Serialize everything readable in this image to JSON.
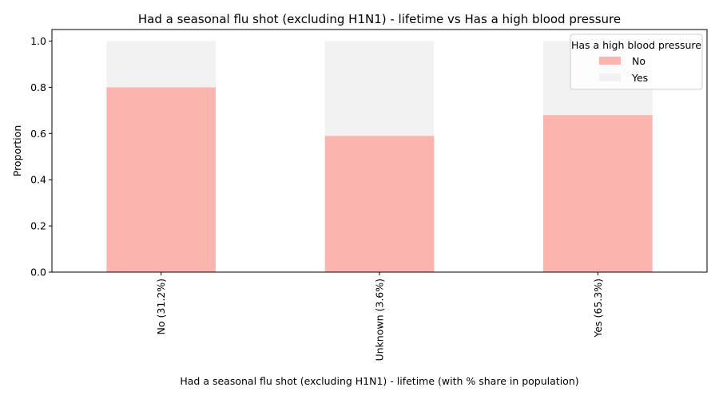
{
  "chart_data": {
    "type": "bar",
    "stacked": true,
    "title": "Had a seasonal flu shot (excluding H1N1) - lifetime vs Has a high blood pressure",
    "xlabel": "Had a seasonal flu shot (excluding H1N1) - lifetime (with % share in population)",
    "ylabel": "Proportion",
    "categories": [
      "No (31.2%)",
      "Unknown (3.6%)",
      "Yes (65.3%)"
    ],
    "series": [
      {
        "name": "No",
        "values": [
          0.8,
          0.59,
          0.68
        ],
        "color": "#fbb4ae"
      },
      {
        "name": "Yes",
        "values": [
          0.2,
          0.41,
          0.32
        ],
        "color": "#f2f2f2"
      }
    ],
    "ylim": [
      0,
      1.05
    ],
    "yticks": [
      0.0,
      0.2,
      0.4,
      0.6,
      0.8,
      1.0
    ],
    "ytick_labels": [
      "0.0",
      "0.2",
      "0.4",
      "0.6",
      "0.8",
      "1.0"
    ],
    "legend": {
      "title": "Has a high blood pressure",
      "position": "top-right"
    },
    "grid": false
  }
}
